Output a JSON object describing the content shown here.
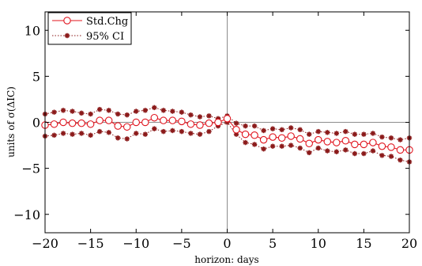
{
  "chart_data": {
    "type": "line",
    "xlabel": "horizon: days",
    "ylabel": "units of σ(ΔIC)",
    "xlim": [
      -20,
      20
    ],
    "ylim": [
      -12,
      12
    ],
    "xticks": [
      -20,
      -15,
      -10,
      -5,
      0,
      5,
      10,
      15,
      20
    ],
    "yticks": [
      -10,
      -5,
      0,
      5,
      10
    ],
    "xtick_labels": [
      "−20",
      "−15",
      "−10",
      "−5",
      "0",
      "5",
      "10",
      "15",
      "20"
    ],
    "ytick_labels": [
      "−10",
      "−5",
      "0",
      "5",
      "10"
    ],
    "reference_lines": {
      "x": 0,
      "y": 0
    },
    "legend_position": "top-left",
    "x": [
      -20,
      -19,
      -18,
      -17,
      -16,
      -15,
      -14,
      -13,
      -12,
      -11,
      -10,
      -9,
      -8,
      -7,
      -6,
      -5,
      -4,
      -3,
      -2,
      -1,
      0,
      1,
      2,
      3,
      4,
      5,
      6,
      7,
      8,
      9,
      10,
      11,
      12,
      13,
      14,
      15,
      16,
      17,
      18,
      19,
      20
    ],
    "series": [
      {
        "name": "Std.Chg",
        "style": "line-circle",
        "color": "#e0141e",
        "values": [
          -0.3,
          -0.2,
          0.0,
          -0.1,
          -0.1,
          -0.2,
          0.2,
          0.2,
          -0.4,
          -0.5,
          0.0,
          0.0,
          0.5,
          0.2,
          0.2,
          0.1,
          -0.2,
          -0.3,
          -0.1,
          0.0,
          0.4,
          -0.8,
          -1.3,
          -1.4,
          -1.9,
          -1.6,
          -1.7,
          -1.5,
          -1.8,
          -2.3,
          -1.9,
          -2.1,
          -2.2,
          -2.0,
          -2.4,
          -2.4,
          -2.2,
          -2.6,
          -2.7,
          -3.0,
          -3.0
        ]
      },
      {
        "name": "95% CI",
        "style": "dotted-star",
        "color": "#8b1a1a",
        "upper": [
          0.9,
          1.1,
          1.3,
          1.2,
          1.0,
          0.9,
          1.4,
          1.3,
          0.9,
          0.8,
          1.2,
          1.3,
          1.6,
          1.3,
          1.2,
          1.1,
          0.8,
          0.6,
          0.7,
          0.4,
          0.7,
          -0.1,
          -0.4,
          -0.4,
          -0.9,
          -0.7,
          -0.8,
          -0.6,
          -0.8,
          -1.3,
          -1.0,
          -1.1,
          -1.2,
          -1.0,
          -1.3,
          -1.3,
          -1.2,
          -1.6,
          -1.7,
          -1.9,
          -1.7
        ],
        "lower": [
          -1.5,
          -1.4,
          -1.2,
          -1.3,
          -1.2,
          -1.4,
          -1.0,
          -1.1,
          -1.7,
          -1.8,
          -1.2,
          -1.3,
          -0.7,
          -1.0,
          -0.9,
          -1.0,
          -1.2,
          -1.3,
          -1.0,
          -0.4,
          0.0,
          -1.3,
          -2.2,
          -2.4,
          -2.9,
          -2.6,
          -2.6,
          -2.5,
          -2.8,
          -3.3,
          -2.8,
          -3.1,
          -3.2,
          -3.0,
          -3.4,
          -3.4,
          -3.1,
          -3.6,
          -3.7,
          -4.1,
          -4.3
        ]
      }
    ]
  }
}
